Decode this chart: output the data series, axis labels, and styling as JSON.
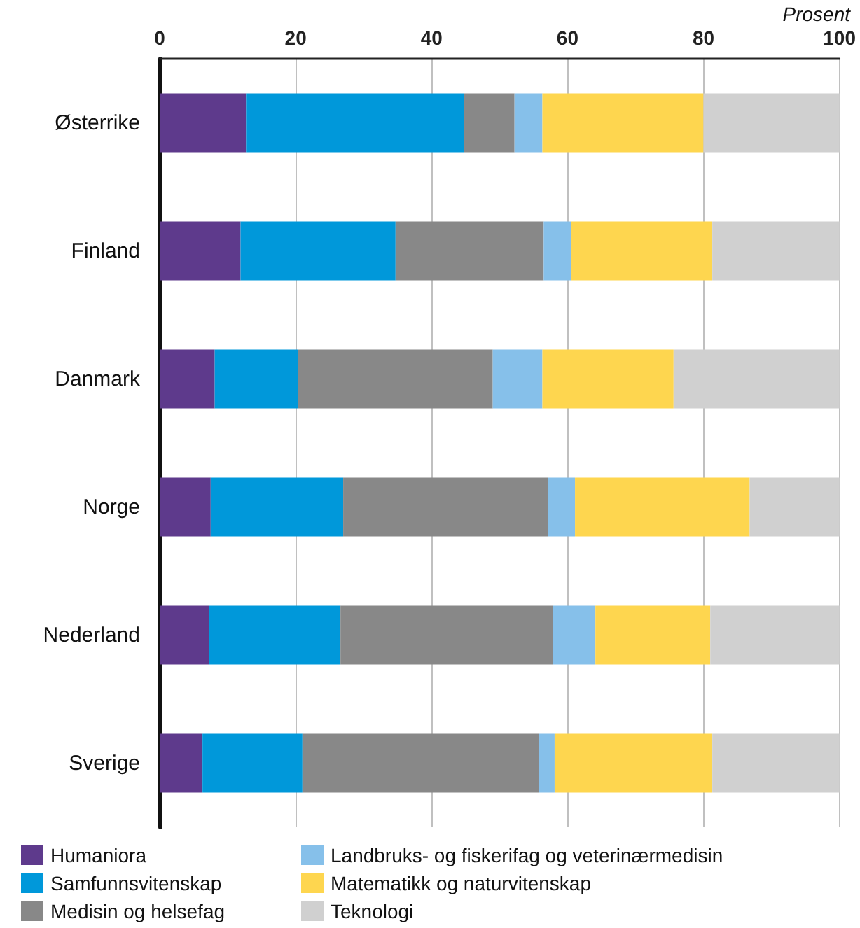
{
  "chart_data": {
    "type": "bar",
    "orientation": "horizontal",
    "stacked": true,
    "xlabel": "Prosent",
    "categories": [
      "Østerrike",
      "Finland",
      "Danmark",
      "Norge",
      "Nederland",
      "Sverige"
    ],
    "series": [
      {
        "name": "Humaniora",
        "color": "#5e3a8c",
        "values": [
          12.7,
          11.9,
          8.1,
          7.5,
          7.3,
          6.3
        ]
      },
      {
        "name": "Samfunnsvitenskap",
        "color": "#0098da",
        "values": [
          32.1,
          22.8,
          12.3,
          19.5,
          19.3,
          14.7
        ]
      },
      {
        "name": "Medisin og helsefag",
        "color": "#888888",
        "values": [
          7.4,
          21.8,
          28.6,
          30.1,
          31.3,
          34.8
        ]
      },
      {
        "name": "Landbruks- og fiskerifag og veterinærmedisin",
        "color": "#86c0ea",
        "values": [
          4.1,
          4.0,
          7.3,
          4.0,
          6.2,
          2.3
        ]
      },
      {
        "name": "Matematikk og naturvitenskap",
        "color": "#fed64f",
        "values": [
          23.7,
          20.8,
          19.3,
          25.7,
          16.9,
          23.2
        ]
      },
      {
        "name": "Teknologi",
        "color": "#d0d0d0",
        "values": [
          20.0,
          18.7,
          24.4,
          13.2,
          19.0,
          18.7
        ]
      }
    ],
    "xlim": [
      0,
      100
    ],
    "xticks": [
      0,
      20,
      40,
      60,
      80,
      100
    ],
    "grid": "x",
    "legend": "bottom"
  }
}
